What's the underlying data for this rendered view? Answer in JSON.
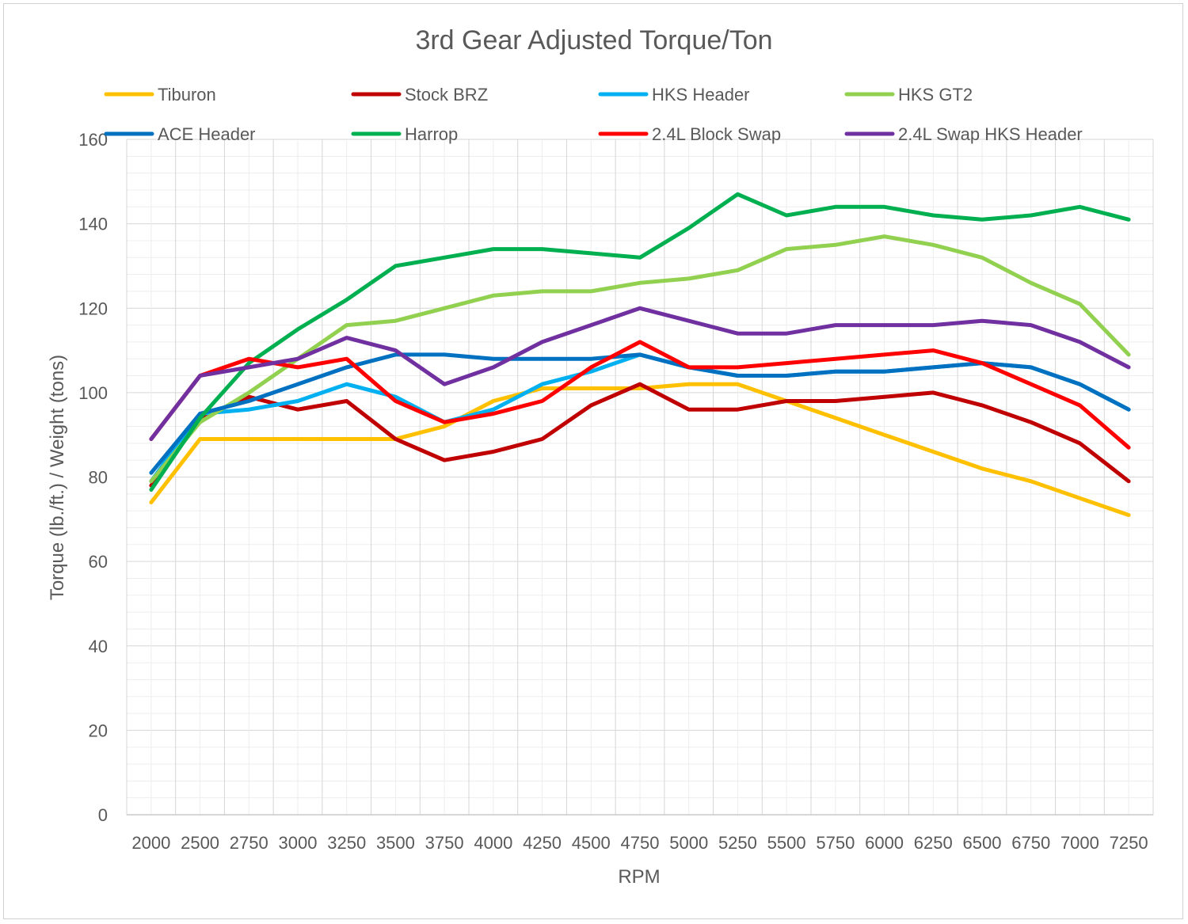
{
  "chart_data": {
    "type": "line",
    "title": "3rd Gear Adjusted Torque/Ton",
    "xlabel": "RPM",
    "ylabel": "Torque (lb./ft.) / Weight (tons)",
    "ylim": [
      0,
      160
    ],
    "yticks": [
      "0",
      "20",
      "40",
      "60",
      "80",
      "100",
      "120",
      "140",
      "160"
    ],
    "grid": true,
    "legend_position": "top",
    "categories": [
      "2000",
      "2500",
      "2750",
      "3000",
      "3250",
      "3500",
      "3750",
      "4000",
      "4250",
      "4500",
      "4750",
      "5000",
      "5250",
      "5500",
      "5750",
      "6000",
      "6250",
      "6500",
      "6750",
      "7000",
      "7250"
    ],
    "series": [
      {
        "name": "Tiburon",
        "color": "#FFC000",
        "values": [
          74,
          89,
          89,
          89,
          89,
          89,
          92,
          98,
          101,
          101,
          101,
          102,
          102,
          98,
          94,
          90,
          86,
          82,
          79,
          75,
          71
        ]
      },
      {
        "name": "Stock BRZ",
        "color": "#C00000",
        "values": [
          78,
          94,
          99,
          96,
          98,
          89,
          84,
          86,
          89,
          97,
          102,
          96,
          96,
          98,
          98,
          99,
          100,
          97,
          93,
          88,
          79
        ]
      },
      {
        "name": "HKS Header",
        "color": "#00B0F0",
        "values": [
          79,
          95,
          96,
          98,
          102,
          99,
          93,
          96,
          102,
          105,
          109,
          106,
          104,
          104,
          105,
          105,
          106,
          107,
          106,
          102,
          96
        ]
      },
      {
        "name": "HKS GT2",
        "color": "#92D050",
        "values": [
          79,
          93,
          100,
          108,
          116,
          117,
          120,
          123,
          124,
          124,
          126,
          127,
          129,
          134,
          135,
          137,
          135,
          132,
          126,
          121,
          109
        ]
      },
      {
        "name": "ACE Header",
        "color": "#0070C0",
        "values": [
          81,
          95,
          98,
          102,
          106,
          109,
          109,
          108,
          108,
          108,
          109,
          106,
          104,
          104,
          105,
          105,
          106,
          107,
          106,
          102,
          96
        ]
      },
      {
        "name": "Harrop",
        "color": "#00B050",
        "values": [
          77,
          94,
          107,
          115,
          122,
          130,
          132,
          134,
          134,
          133,
          132,
          139,
          147,
          142,
          144,
          144,
          142,
          141,
          142,
          144,
          141
        ]
      },
      {
        "name": "2.4L Block Swap",
        "color": "#FF0000",
        "values": [
          89,
          104,
          108,
          106,
          108,
          98,
          93,
          95,
          98,
          106,
          112,
          106,
          106,
          107,
          108,
          109,
          110,
          107,
          102,
          97,
          87
        ]
      },
      {
        "name": "2.4L Swap HKS Header",
        "color": "#7030A0",
        "values": [
          89,
          104,
          106,
          108,
          113,
          110,
          102,
          106,
          112,
          116,
          120,
          117,
          114,
          114,
          116,
          116,
          116,
          117,
          116,
          112,
          106
        ]
      }
    ]
  }
}
